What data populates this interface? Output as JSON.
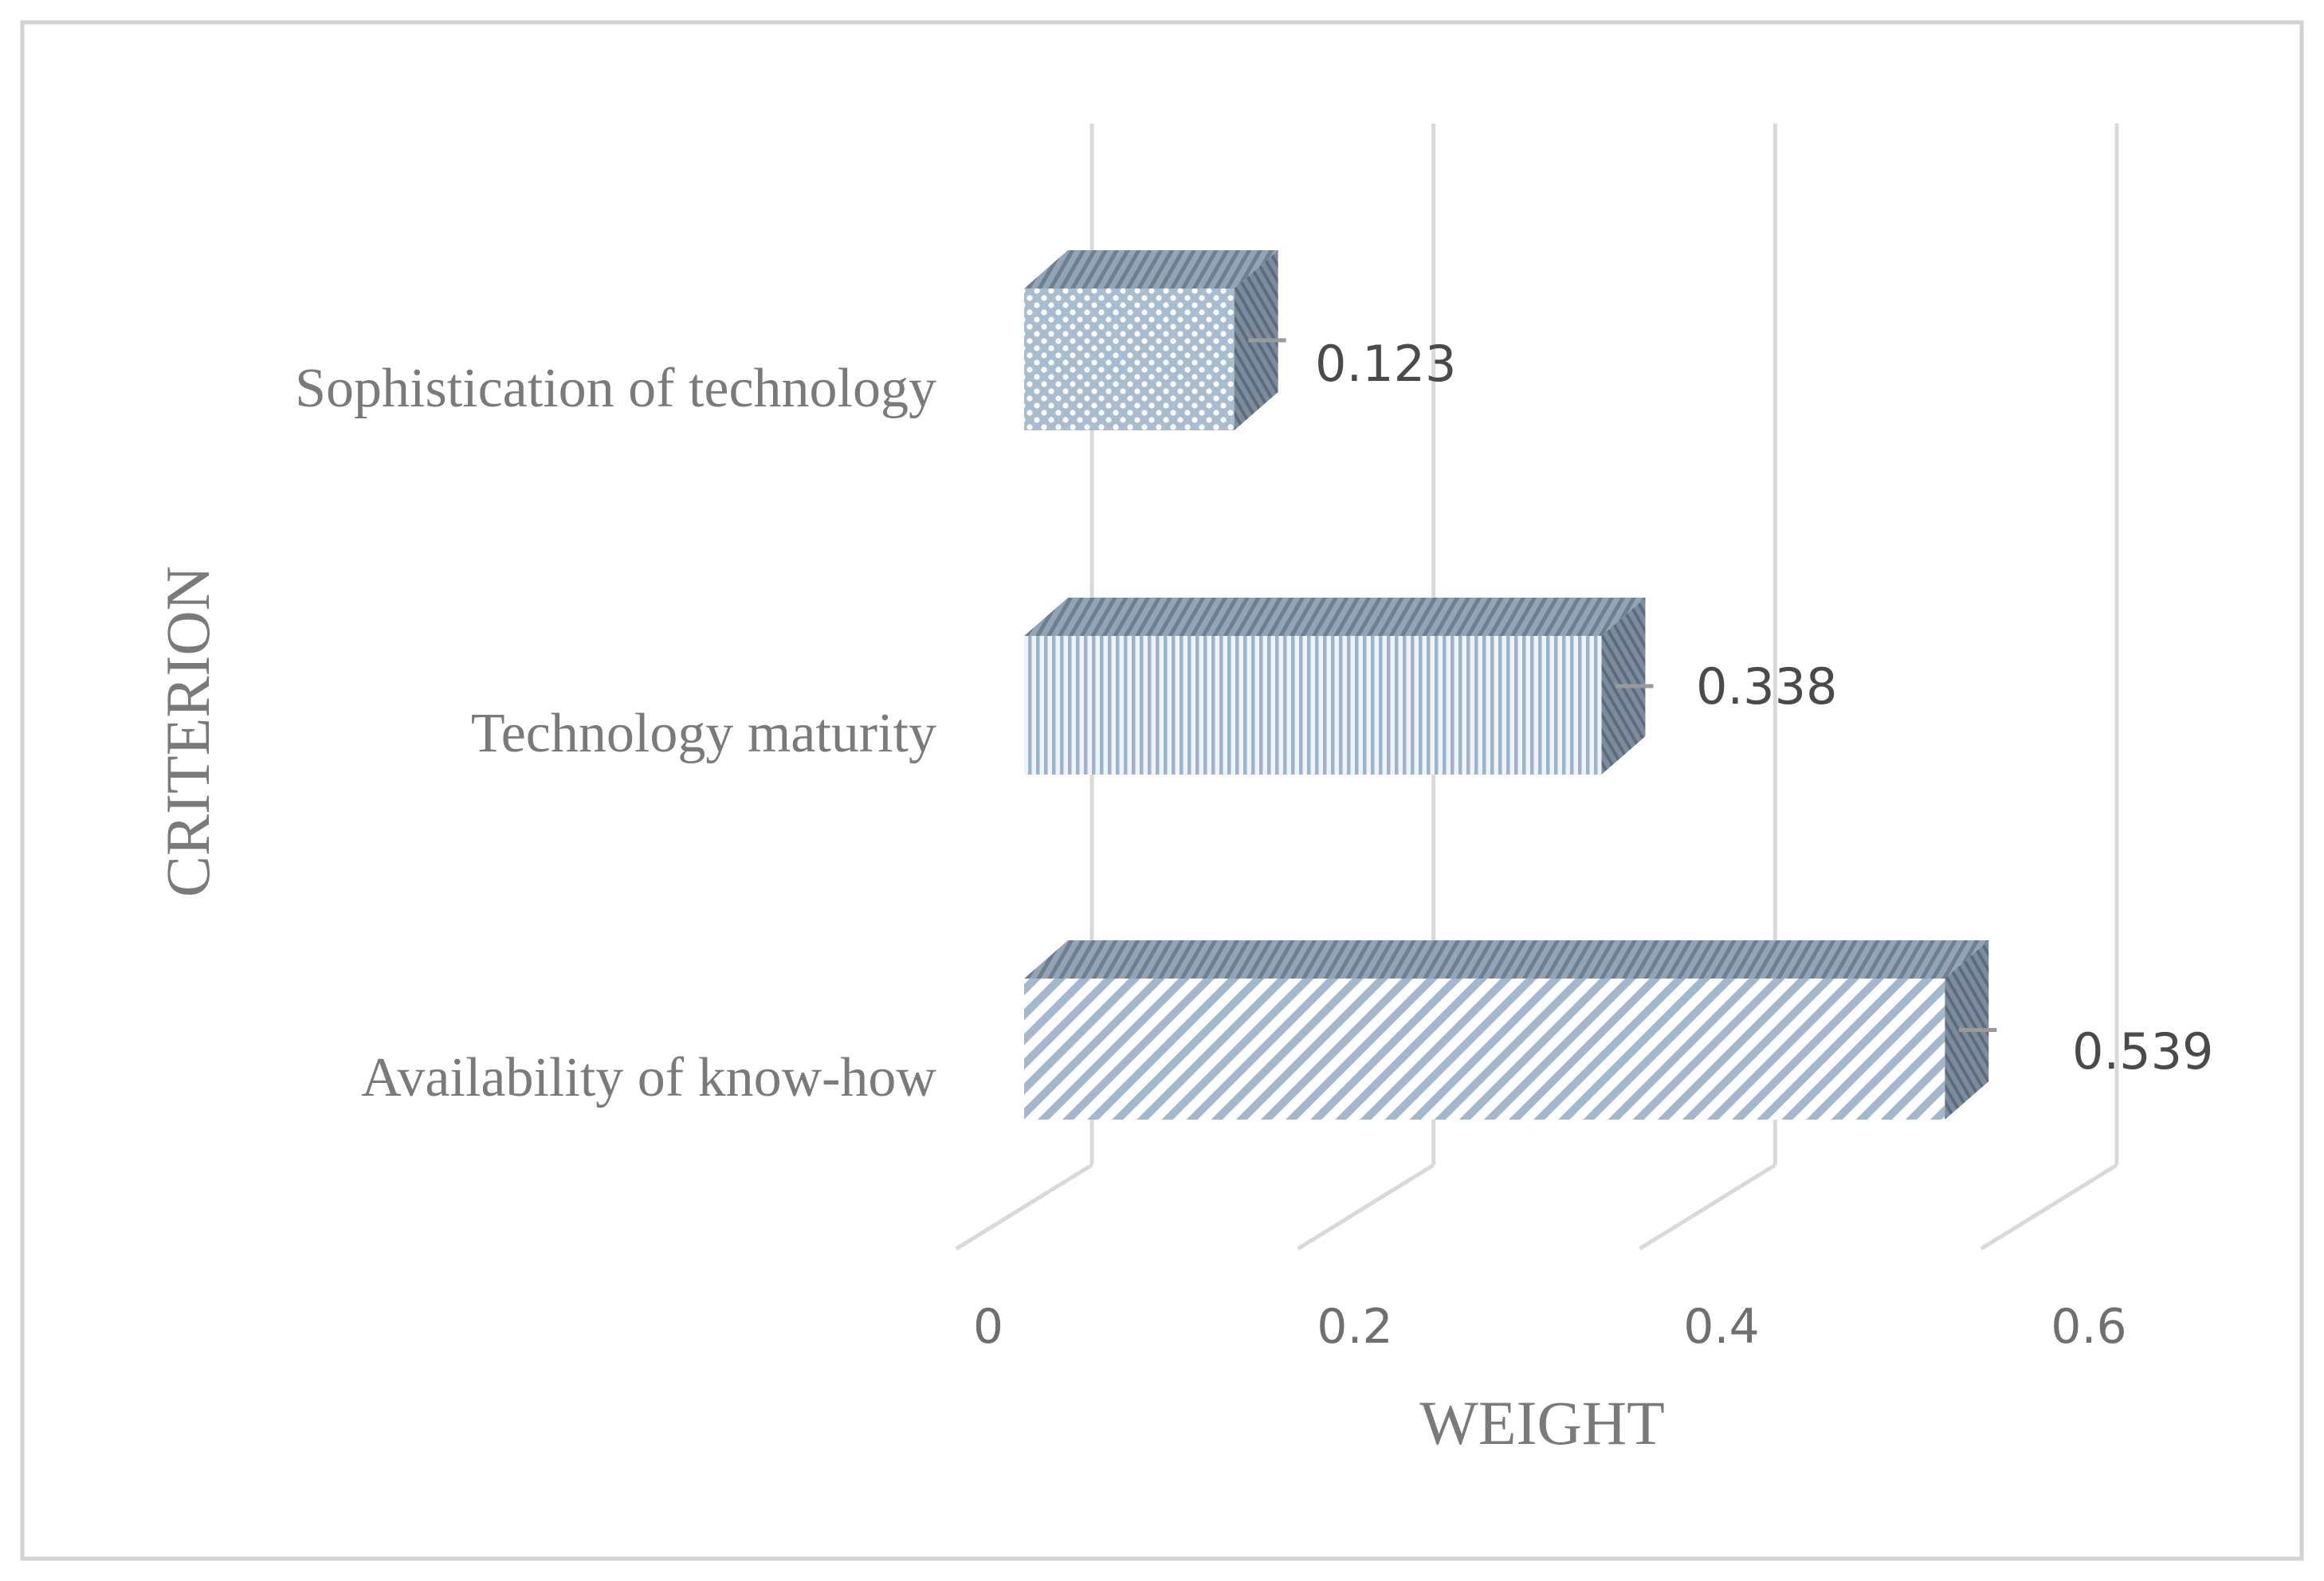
{
  "chart_data": {
    "type": "bar",
    "orientation": "horizontal",
    "categories": [
      "Sophistication of technology",
      "Technology maturity",
      "Availability of know-how"
    ],
    "values": [
      0.123,
      0.338,
      0.539
    ],
    "data_labels": [
      "0.123",
      "0.338",
      "0.539"
    ],
    "xlabel": "WEIGHT",
    "ylabel": "CRITERION",
    "xlim": [
      0,
      0.6
    ],
    "x_ticks": [
      0,
      0.2,
      0.4,
      0.6
    ],
    "x_tick_labels": [
      "0",
      "0.2",
      "0.4",
      "0.6"
    ],
    "grid": true,
    "style": "3d",
    "colors": {
      "bar_face": "#a9bdd1",
      "bar_top": "#8e9fb2",
      "bar_side": "#6f8093",
      "grid": "#d9d9d9",
      "border": "#d0d0d0"
    },
    "patterns": [
      "dots",
      "vertical-stripes",
      "diagonal-stripes"
    ]
  }
}
